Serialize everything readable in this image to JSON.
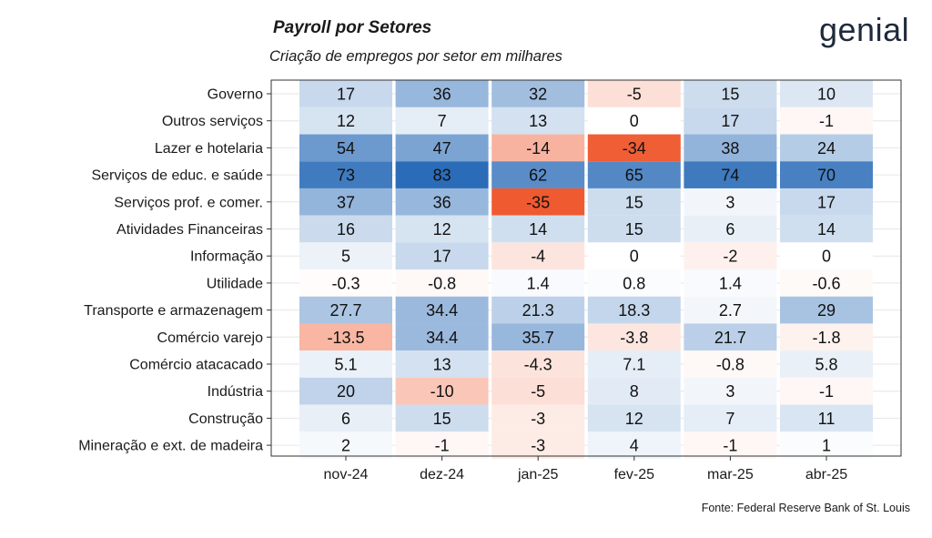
{
  "header": {
    "title": "Payroll por Setores",
    "subtitle": "Criação de empregos por setor em milhares",
    "logo_text": "genial"
  },
  "footer": {
    "source": "Fonte: Federal Reserve Bank of St. Louis"
  },
  "colors": {
    "positive_max": "#2b6cb8",
    "negative_max": "#ef5a30",
    "neutral": "#ffffff"
  },
  "chart_data": {
    "type": "heatmap",
    "title": "Payroll por Setores",
    "subtitle": "Criação de empregos por setor em milhares",
    "columns": [
      "nov-24",
      "dez-24",
      "jan-25",
      "fev-25",
      "mar-25",
      "abr-25"
    ],
    "rows": [
      {
        "label": "Governo",
        "values": [
          "17",
          "36",
          "32",
          "-5",
          "15",
          "10"
        ]
      },
      {
        "label": "Outros serviços",
        "values": [
          "12",
          "7",
          "13",
          "0",
          "17",
          "-1"
        ]
      },
      {
        "label": "Lazer e hotelaria",
        "values": [
          "54",
          "47",
          "-14",
          "-34",
          "38",
          "24"
        ]
      },
      {
        "label": "Serviços de educ. e saúde",
        "values": [
          "73",
          "83",
          "62",
          "65",
          "74",
          "70"
        ]
      },
      {
        "label": "Serviços prof. e comer.",
        "values": [
          "37",
          "36",
          "-35",
          "15",
          "3",
          "17"
        ]
      },
      {
        "label": "Atividades Financeiras",
        "values": [
          "16",
          "12",
          "14",
          "15",
          "6",
          "14"
        ]
      },
      {
        "label": "Informação",
        "values": [
          "5",
          "17",
          "-4",
          "0",
          "-2",
          "0"
        ]
      },
      {
        "label": "Utilidade",
        "values": [
          "-0.3",
          "-0.8",
          "1.4",
          "0.8",
          "1.4",
          "-0.6"
        ]
      },
      {
        "label": "Transporte e armazenagem",
        "values": [
          "27.7",
          "34.4",
          "21.3",
          "18.3",
          "2.7",
          "29"
        ]
      },
      {
        "label": "Comércio varejo",
        "values": [
          "-13.5",
          "34.4",
          "35.7",
          "-3.8",
          "21.7",
          "-1.8"
        ]
      },
      {
        "label": "Comércio atacacado",
        "values": [
          "5.1",
          "13",
          "-4.3",
          "7.1",
          "-0.8",
          "5.8"
        ]
      },
      {
        "label": "Indústria",
        "values": [
          "20",
          "-10",
          "-5",
          "8",
          "3",
          "-1"
        ]
      },
      {
        "label": "Construção",
        "values": [
          "6",
          "15",
          "-3",
          "12",
          "7",
          "11"
        ]
      },
      {
        "label": "Mineração e ext. de madeira",
        "values": [
          "2",
          "-1",
          "-3",
          "4",
          "-1",
          "1"
        ]
      }
    ],
    "scale": {
      "positive_max": 83,
      "negative_max": -35
    },
    "grid": true,
    "legend": "none"
  }
}
